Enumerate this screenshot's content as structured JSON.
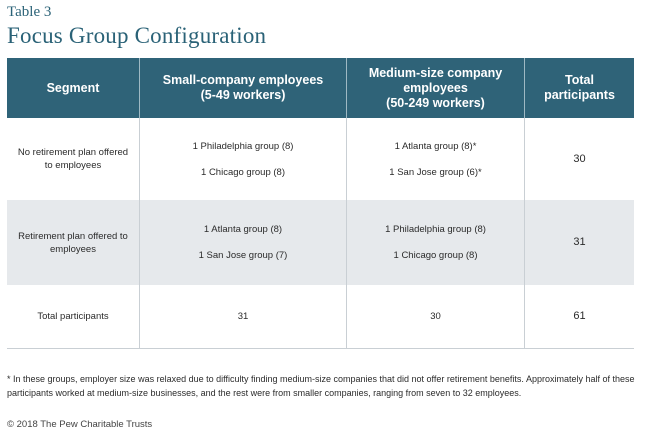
{
  "label": "Table 3",
  "title": "Focus Group Configuration",
  "table": {
    "headers": [
      "Segment",
      "Small-company employees\n(5-49 workers)",
      "Medium-size company employees\n(50-249 workers)",
      "Total participants"
    ],
    "rows": [
      {
        "segment": "No retirement plan offered to employees",
        "small": [
          "1 Philadelphia group (8)",
          "1 Chicago group (8)"
        ],
        "medium": [
          "1 Atlanta group (8)*",
          "1 San Jose group (6)*"
        ],
        "total": "30"
      },
      {
        "segment": "Retirement plan offered to employees",
        "small": [
          "1 Atlanta group (8)",
          "1 San Jose group (7)"
        ],
        "medium": [
          "1 Philadelphia group (8)",
          "1 Chicago group (8)"
        ],
        "total": "31"
      },
      {
        "segment": "Total participants",
        "small": "31",
        "medium": "30",
        "total": "61"
      }
    ]
  },
  "footnote": "* In these groups, employer size was relaxed due to difficulty finding medium-size companies that did not offer retirement benefits. Approximately half of these participants worked at medium-size businesses, and the rest were from smaller companies, ranging from seven to 32 employees.",
  "copyright": "© 2018 The Pew Charitable Trusts"
}
